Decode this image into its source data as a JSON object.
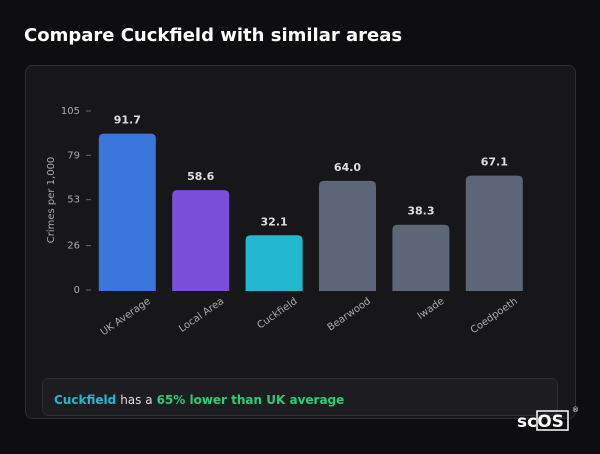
{
  "chart_data": {
    "type": "bar",
    "title": "Compare Cuckfield with similar areas",
    "y_label": "Crimes per 1,000",
    "categories": [
      "UK Average",
      "Local Area",
      "Cuckfield",
      "Bearwood",
      "Iwade",
      "Coedpoeth"
    ],
    "values": [
      91.7,
      58.6,
      32.1,
      64.0,
      38.3,
      67.1
    ],
    "value_labels": [
      "91.7",
      "58.6",
      "32.1",
      "64.0",
      "38.3",
      "67.1"
    ],
    "colors": [
      "#3a76dc",
      "#7b4fd8",
      "#22b9d0",
      "#5c6677",
      "#5c6677",
      "#5c6677"
    ],
    "ylim": [
      0,
      105
    ],
    "yticks": [
      0,
      26,
      53,
      79,
      105
    ],
    "grid": false
  },
  "summary": {
    "place": "Cuckfield",
    "text": "has a",
    "highlight": "65% lower than UK average"
  },
  "logo": {
    "prefix": "sc",
    "boxed": "OS",
    "mark": "®"
  }
}
